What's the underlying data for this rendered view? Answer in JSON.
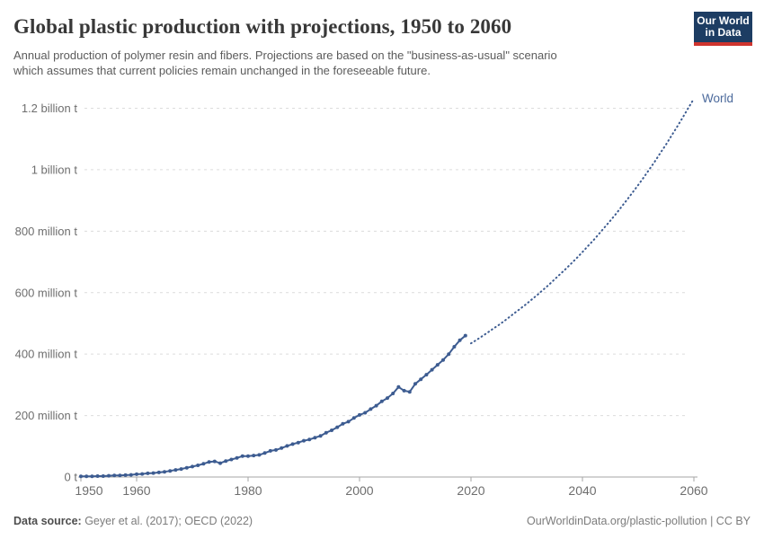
{
  "header": {
    "title": "Global plastic production with projections, 1950 to 2060",
    "subtitle_line1": "Annual production of polymer resin and fibers. Projections are based on the \"business-as-usual\" scenario",
    "subtitle_line2": "which assumes that current policies remain unchanged in the foreseeable future.",
    "logo": {
      "line1": "Our World",
      "line2": "in Data",
      "bg_color": "#1d3d63",
      "bar_color": "#cf342e"
    }
  },
  "chart_data": {
    "type": "line",
    "title": "Global plastic production with projections, 1950 to 2060",
    "xlabel": "",
    "ylabel": "",
    "unit": "tonnes per year",
    "entity_label": "World",
    "line_color": "#3d5c91",
    "label_color": "#4c6a9c",
    "grid": "horizontal-dashed",
    "grid_color": "#dcdcdc",
    "axis_color": "#a6a6a6",
    "tick_text_color": "#6e6e6e",
    "xlim": [
      1950,
      2060
    ],
    "ylim": [
      0,
      1200
    ],
    "yticks": [
      {
        "value": 0,
        "label": "0 t"
      },
      {
        "value": 200,
        "label": "200 million t"
      },
      {
        "value": 400,
        "label": "400 million t"
      },
      {
        "value": 600,
        "label": "600 million t"
      },
      {
        "value": 800,
        "label": "800 million t"
      },
      {
        "value": 1000,
        "label": "1 billion t"
      },
      {
        "value": 1200,
        "label": "1.2 billion t"
      }
    ],
    "xticks": [
      {
        "value": 1950,
        "label": "1950"
      },
      {
        "value": 1960,
        "label": "1960"
      },
      {
        "value": 1980,
        "label": "1980"
      },
      {
        "value": 2000,
        "label": "2000"
      },
      {
        "value": 2020,
        "label": "2020"
      },
      {
        "value": 2040,
        "label": "2040"
      },
      {
        "value": 2060,
        "label": "2060"
      }
    ],
    "series": [
      {
        "name": "World — historical production",
        "style": "solid",
        "markers": true,
        "points": [
          [
            1950,
            2
          ],
          [
            1951,
            2
          ],
          [
            1952,
            2
          ],
          [
            1953,
            3
          ],
          [
            1954,
            3
          ],
          [
            1955,
            4
          ],
          [
            1956,
            5
          ],
          [
            1957,
            5
          ],
          [
            1958,
            6
          ],
          [
            1959,
            7
          ],
          [
            1960,
            9
          ],
          [
            1961,
            10
          ],
          [
            1962,
            12
          ],
          [
            1963,
            13
          ],
          [
            1964,
            15
          ],
          [
            1965,
            17
          ],
          [
            1966,
            20
          ],
          [
            1967,
            23
          ],
          [
            1968,
            26
          ],
          [
            1969,
            30
          ],
          [
            1970,
            34
          ],
          [
            1971,
            38
          ],
          [
            1972,
            43
          ],
          [
            1973,
            49
          ],
          [
            1974,
            51
          ],
          [
            1975,
            45
          ],
          [
            1976,
            52
          ],
          [
            1977,
            57
          ],
          [
            1978,
            62
          ],
          [
            1979,
            68
          ],
          [
            1980,
            68
          ],
          [
            1981,
            70
          ],
          [
            1982,
            72
          ],
          [
            1983,
            78
          ],
          [
            1984,
            85
          ],
          [
            1985,
            88
          ],
          [
            1986,
            94
          ],
          [
            1987,
            101
          ],
          [
            1988,
            107
          ],
          [
            1989,
            112
          ],
          [
            1990,
            118
          ],
          [
            1991,
            122
          ],
          [
            1992,
            128
          ],
          [
            1993,
            134
          ],
          [
            1994,
            144
          ],
          [
            1995,
            152
          ],
          [
            1996,
            162
          ],
          [
            1997,
            173
          ],
          [
            1998,
            180
          ],
          [
            1999,
            192
          ],
          [
            2000,
            202
          ],
          [
            2001,
            209
          ],
          [
            2002,
            221
          ],
          [
            2003,
            232
          ],
          [
            2004,
            246
          ],
          [
            2005,
            257
          ],
          [
            2006,
            272
          ],
          [
            2007,
            293
          ],
          [
            2008,
            281
          ],
          [
            2009,
            277
          ],
          [
            2010,
            303
          ],
          [
            2011,
            318
          ],
          [
            2012,
            333
          ],
          [
            2013,
            349
          ],
          [
            2014,
            365
          ],
          [
            2015,
            381
          ],
          [
            2016,
            400
          ],
          [
            2017,
            424
          ],
          [
            2018,
            445
          ],
          [
            2019,
            460
          ]
        ]
      },
      {
        "name": "World — projection (business-as-usual)",
        "style": "dotted",
        "markers": false,
        "points": [
          [
            2020,
            435
          ],
          [
            2021,
            446
          ],
          [
            2022,
            458
          ],
          [
            2023,
            470
          ],
          [
            2024,
            483
          ],
          [
            2025,
            495
          ],
          [
            2026,
            508
          ],
          [
            2027,
            522
          ],
          [
            2028,
            536
          ],
          [
            2029,
            550
          ],
          [
            2030,
            564
          ],
          [
            2031,
            579
          ],
          [
            2032,
            594
          ],
          [
            2033,
            610
          ],
          [
            2034,
            626
          ],
          [
            2035,
            643
          ],
          [
            2036,
            660
          ],
          [
            2037,
            677
          ],
          [
            2038,
            695
          ],
          [
            2039,
            713
          ],
          [
            2040,
            732
          ],
          [
            2041,
            752
          ],
          [
            2042,
            771
          ],
          [
            2043,
            792
          ],
          [
            2044,
            813
          ],
          [
            2045,
            834
          ],
          [
            2046,
            856
          ],
          [
            2047,
            879
          ],
          [
            2048,
            902
          ],
          [
            2049,
            926
          ],
          [
            2050,
            950
          ],
          [
            2051,
            975
          ],
          [
            2052,
            1001
          ],
          [
            2053,
            1027
          ],
          [
            2054,
            1055
          ],
          [
            2055,
            1082
          ],
          [
            2056,
            1111
          ],
          [
            2057,
            1140
          ],
          [
            2058,
            1170
          ],
          [
            2059,
            1201
          ],
          [
            2060,
            1231
          ]
        ]
      }
    ]
  },
  "footer": {
    "data_source_label": "Data source:",
    "data_source_value": " Geyer et al. (2017); OECD (2022)",
    "credit": "OurWorldinData.org/plastic-pollution | CC BY"
  }
}
